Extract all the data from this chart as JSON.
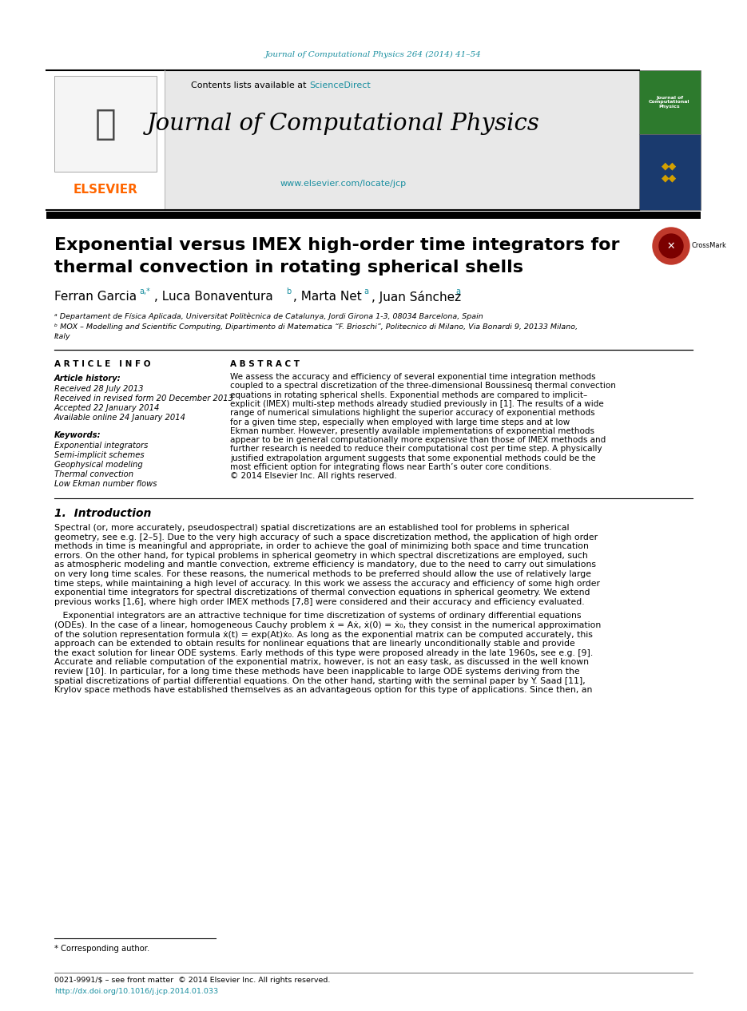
{
  "page_bg": "#ffffff",
  "top_journal_ref": "Journal of Computational Physics 264 (2014) 41–54",
  "top_journal_ref_color": "#1a8fa0",
  "header_bg": "#e8e8e8",
  "journal_name": "Journal of Computational Physics",
  "journal_url": "www.elsevier.com/locate/jcp",
  "journal_url_color": "#1a8fa0",
  "contents_text": "Contents lists available at ",
  "sciencedirect_text": "ScienceDirect",
  "sciencedirect_color": "#1a8fa0",
  "elsevier_color": "#FF6600",
  "article_title_line1": "Exponential versus IMEX high-order time integrators for",
  "article_title_line2": "thermal convection in rotating spherical shells",
  "affil_a": "ᵃ Departament de Física Aplicada, Universitat Politècnica de Catalunya, Jordi Girona 1-3, 08034 Barcelona, Spain",
  "affil_b": "ᵇ MOX – Modelling and Scientific Computing, Dipartimento di Matematica “F. Brioschi”, Politecnico di Milano, Via Bonardi 9, 20133 Milano,",
  "affil_b2": "Italy",
  "article_info_header": "A R T I C L E   I N F O",
  "abstract_header": "A B S T R A C T",
  "article_history": "Article history:",
  "received1": "Received 28 July 2013",
  "revised": "Received in revised form 20 December 2013",
  "accepted": "Accepted 22 January 2014",
  "available": "Available online 24 January 2014",
  "keywords_header": "Keywords:",
  "kw1": "Exponential integrators",
  "kw2": "Semi-implicit schemes",
  "kw3": "Geophysical modeling",
  "kw4": "Thermal convection",
  "kw5": "Low Ekman number flows",
  "abstract_lines": [
    "We assess the accuracy and efficiency of several exponential time integration methods",
    "coupled to a spectral discretization of the three-dimensional Boussinesq thermal convection",
    "equations in rotating spherical shells. Exponential methods are compared to implicit–",
    "explicit (IMEX) multi-step methods already studied previously in [1]. The results of a wide",
    "range of numerical simulations highlight the superior accuracy of exponential methods",
    "for a given time step, especially when employed with large time steps and at low",
    "Ekman number. However, presently available implementations of exponential methods",
    "appear to be in general computationally more expensive than those of IMEX methods and",
    "further research is needed to reduce their computational cost per time step. A physically",
    "justified extrapolation argument suggests that some exponential methods could be the",
    "most efficient option for integrating flows near Earth’s outer core conditions.",
    "© 2014 Elsevier Inc. All rights reserved."
  ],
  "intro_header": "1.  Introduction",
  "intro_lines1": [
    "Spectral (or, more accurately, pseudospectral) spatial discretizations are an established tool for problems in spherical",
    "geometry, see e.g. [2–5]. Due to the very high accuracy of such a space discretization method, the application of high order",
    "methods in time is meaningful and appropriate, in order to achieve the goal of minimizing both space and time truncation",
    "errors. On the other hand, for typical problems in spherical geometry in which spectral discretizations are employed, such",
    "as atmospheric modeling and mantle convection, extreme efficiency is mandatory, due to the need to carry out simulations",
    "on very long time scales. For these reasons, the numerical methods to be preferred should allow the use of relatively large",
    "time steps, while maintaining a high level of accuracy. In this work we assess the accuracy and efficiency of some high order",
    "exponential time integrators for spectral discretizations of thermal convection equations in spherical geometry. We extend",
    "previous works [1,6], where high order IMEX methods [7,8] were considered and their accuracy and efficiency evaluated."
  ],
  "intro_lines2": [
    "   Exponential integrators are an attractive technique for time discretization of systems of ordinary differential equations",
    "(ODEs). In the case of a linear, homogeneous Cauchy problem ẋ̇ = Aẋ, ẋ(0) = ẋ₀, they consist in the numerical approximation",
    "of the solution representation formula ẋ(t) = exp(At)ẋ₀. As long as the exponential matrix can be computed accurately, this",
    "approach can be extended to obtain results for nonlinear equations that are linearly unconditionally stable and provide",
    "the exact solution for linear ODE systems. Early methods of this type were proposed already in the late 1960s, see e.g. [9].",
    "Accurate and reliable computation of the exponential matrix, however, is not an easy task, as discussed in the well known",
    "review [10]. In particular, for a long time these methods have been inapplicable to large ODE systems deriving from the",
    "spatial discretizations of partial differential equations. On the other hand, starting with the seminal paper by Y. Saad [11],",
    "Krylov space methods have established themselves as an advantageous option for this type of applications. Since then, an"
  ],
  "footnote_star": "* Corresponding author.",
  "footer_issn": "0021-9991/$ – see front matter  © 2014 Elsevier Inc. All rights reserved.",
  "footer_doi": "http://dx.doi.org/10.1016/j.jcp.2014.01.033",
  "footer_doi_color": "#1a8fa0"
}
